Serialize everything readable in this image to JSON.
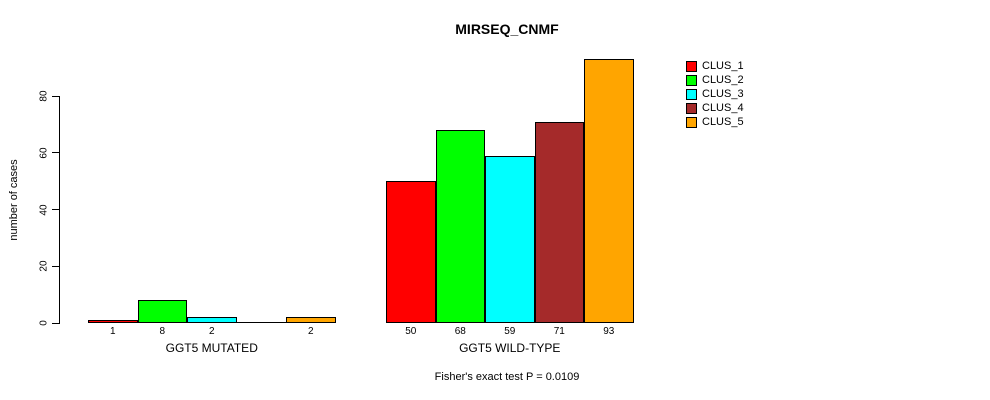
{
  "title": "MIRSEQ_CNMF",
  "footer_note": "Fisher's exact test P = 0.0109",
  "y_axis": {
    "label": "number of cases",
    "ticks": [
      0,
      20,
      40,
      60,
      80
    ]
  },
  "legend": {
    "position": "right",
    "items": [
      {
        "label": "CLUS_1",
        "color": "#FF0000"
      },
      {
        "label": "CLUS_2",
        "color": "#00FF00"
      },
      {
        "label": "CLUS_3",
        "color": "#00FFFF"
      },
      {
        "label": "CLUS_4",
        "color": "#A52A2A"
      },
      {
        "label": "CLUS_5",
        "color": "#FFA500"
      }
    ]
  },
  "chart_data": {
    "type": "bar",
    "title": "MIRSEQ_CNMF",
    "xlabel": "",
    "ylabel": "number of cases",
    "ylim": [
      0,
      93
    ],
    "y_ticks": [
      0,
      20,
      40,
      60,
      80
    ],
    "grid": false,
    "legend_position": "right",
    "bar_border_color": "#000000",
    "series": [
      {
        "name": "CLUS_1",
        "color": "#FF0000"
      },
      {
        "name": "CLUS_2",
        "color": "#00FF00"
      },
      {
        "name": "CLUS_3",
        "color": "#00FFFF"
      },
      {
        "name": "CLUS_4",
        "color": "#A52A2A"
      },
      {
        "name": "CLUS_5",
        "color": "#FFA500"
      }
    ],
    "groups": [
      {
        "label": "GGT5 MUTATED",
        "values": [
          1,
          8,
          2,
          0,
          2
        ],
        "value_labels": [
          "1",
          "8",
          "2",
          "",
          "2"
        ]
      },
      {
        "label": "GGT5 WILD-TYPE",
        "values": [
          50,
          68,
          59,
          71,
          93
        ],
        "value_labels": [
          "50",
          "68",
          "59",
          "71",
          "93"
        ]
      }
    ],
    "annotation": "Fisher's exact test P = 0.0109"
  }
}
